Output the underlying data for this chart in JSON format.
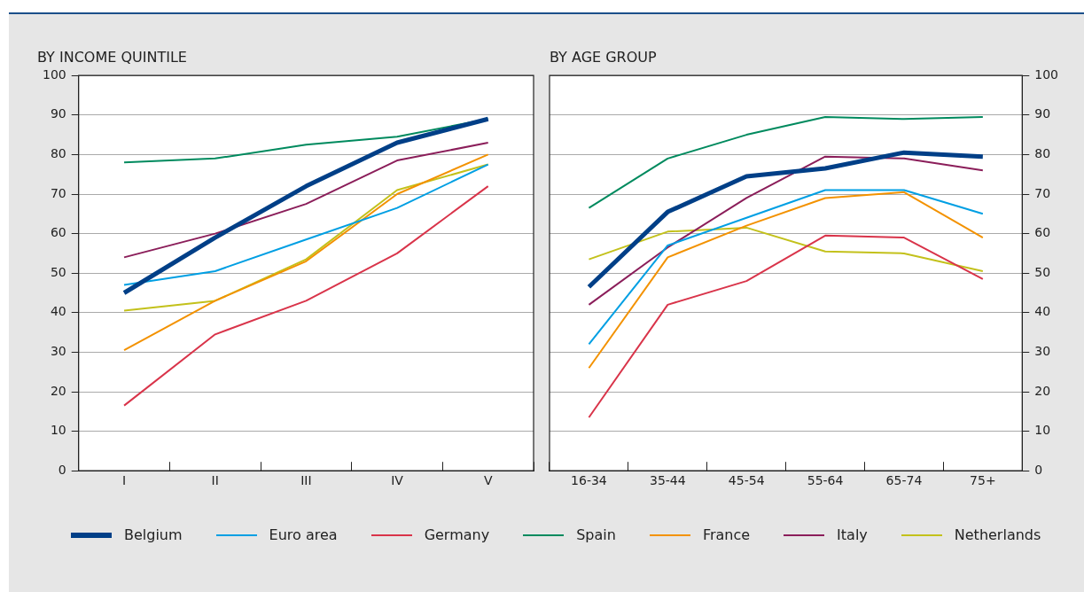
{
  "chart_data": [
    {
      "type": "line",
      "title": "BY INCOME QUINTILE",
      "categories": [
        "I",
        "II",
        "III",
        "IV",
        "V"
      ],
      "ylim": [
        0,
        100
      ],
      "yticks": [
        0,
        10,
        20,
        30,
        40,
        50,
        60,
        70,
        80,
        90,
        100
      ],
      "grid": "y",
      "legend": "bottom",
      "marker": "none",
      "line_style": "solid",
      "series": [
        {
          "name": "Belgium",
          "color": "#003f87",
          "values": [
            45,
            59,
            72,
            83,
            89
          ]
        },
        {
          "name": "Euro area",
          "color": "#009fe3",
          "values": [
            47,
            50.5,
            58.5,
            66.5,
            77.5
          ]
        },
        {
          "name": "Germany",
          "color": "#d9344a",
          "values": [
            16.5,
            34.5,
            43,
            55,
            72
          ]
        },
        {
          "name": "Spain",
          "color": "#008a5e",
          "values": [
            78,
            79,
            82.5,
            84.5,
            89
          ]
        },
        {
          "name": "France",
          "color": "#f39200",
          "values": [
            30.5,
            43,
            53,
            70,
            80
          ]
        },
        {
          "name": "Italy",
          "color": "#8b1e5a",
          "values": [
            54,
            60,
            67.5,
            78.5,
            83
          ]
        },
        {
          "name": "Netherlands",
          "color": "#c3c11b",
          "values": [
            40.5,
            43,
            53.5,
            71,
            77.5
          ]
        }
      ]
    },
    {
      "type": "line",
      "title": "BY AGE GROUP",
      "categories": [
        "16-34",
        "35-44",
        "45-54",
        "55-64",
        "65-74",
        "75+"
      ],
      "y2lim": [
        0,
        100
      ],
      "y2ticks": [
        0,
        10,
        20,
        30,
        40,
        50,
        60,
        70,
        80,
        90,
        100
      ],
      "grid": "y",
      "marker": "none",
      "line_style": "solid",
      "series": [
        {
          "color": "#003f87",
          "axis": "y2",
          "values": [
            46.5,
            65.5,
            74.5,
            76.5,
            80.5,
            79.5
          ]
        },
        {
          "color": "#009fe3",
          "axis": "y2",
          "values": [
            32,
            57,
            64,
            71,
            71,
            65
          ]
        },
        {
          "color": "#d9344a",
          "axis": "y2",
          "values": [
            13.5,
            42,
            48,
            59.5,
            59,
            48.5
          ]
        },
        {
          "color": "#008a5e",
          "axis": "y2",
          "values": [
            66.5,
            79,
            85,
            89.5,
            89,
            89.5
          ]
        },
        {
          "color": "#f39200",
          "axis": "y2",
          "values": [
            26,
            54,
            62,
            69,
            70.5,
            59
          ]
        },
        {
          "color": "#8b1e5a",
          "axis": "y2",
          "values": [
            42,
            56.5,
            69,
            79.5,
            79,
            76
          ]
        },
        {
          "color": "#c3c11b",
          "axis": "y2",
          "values": [
            53.5,
            60.5,
            61.5,
            55.5,
            55,
            50.5
          ]
        }
      ]
    }
  ]
}
